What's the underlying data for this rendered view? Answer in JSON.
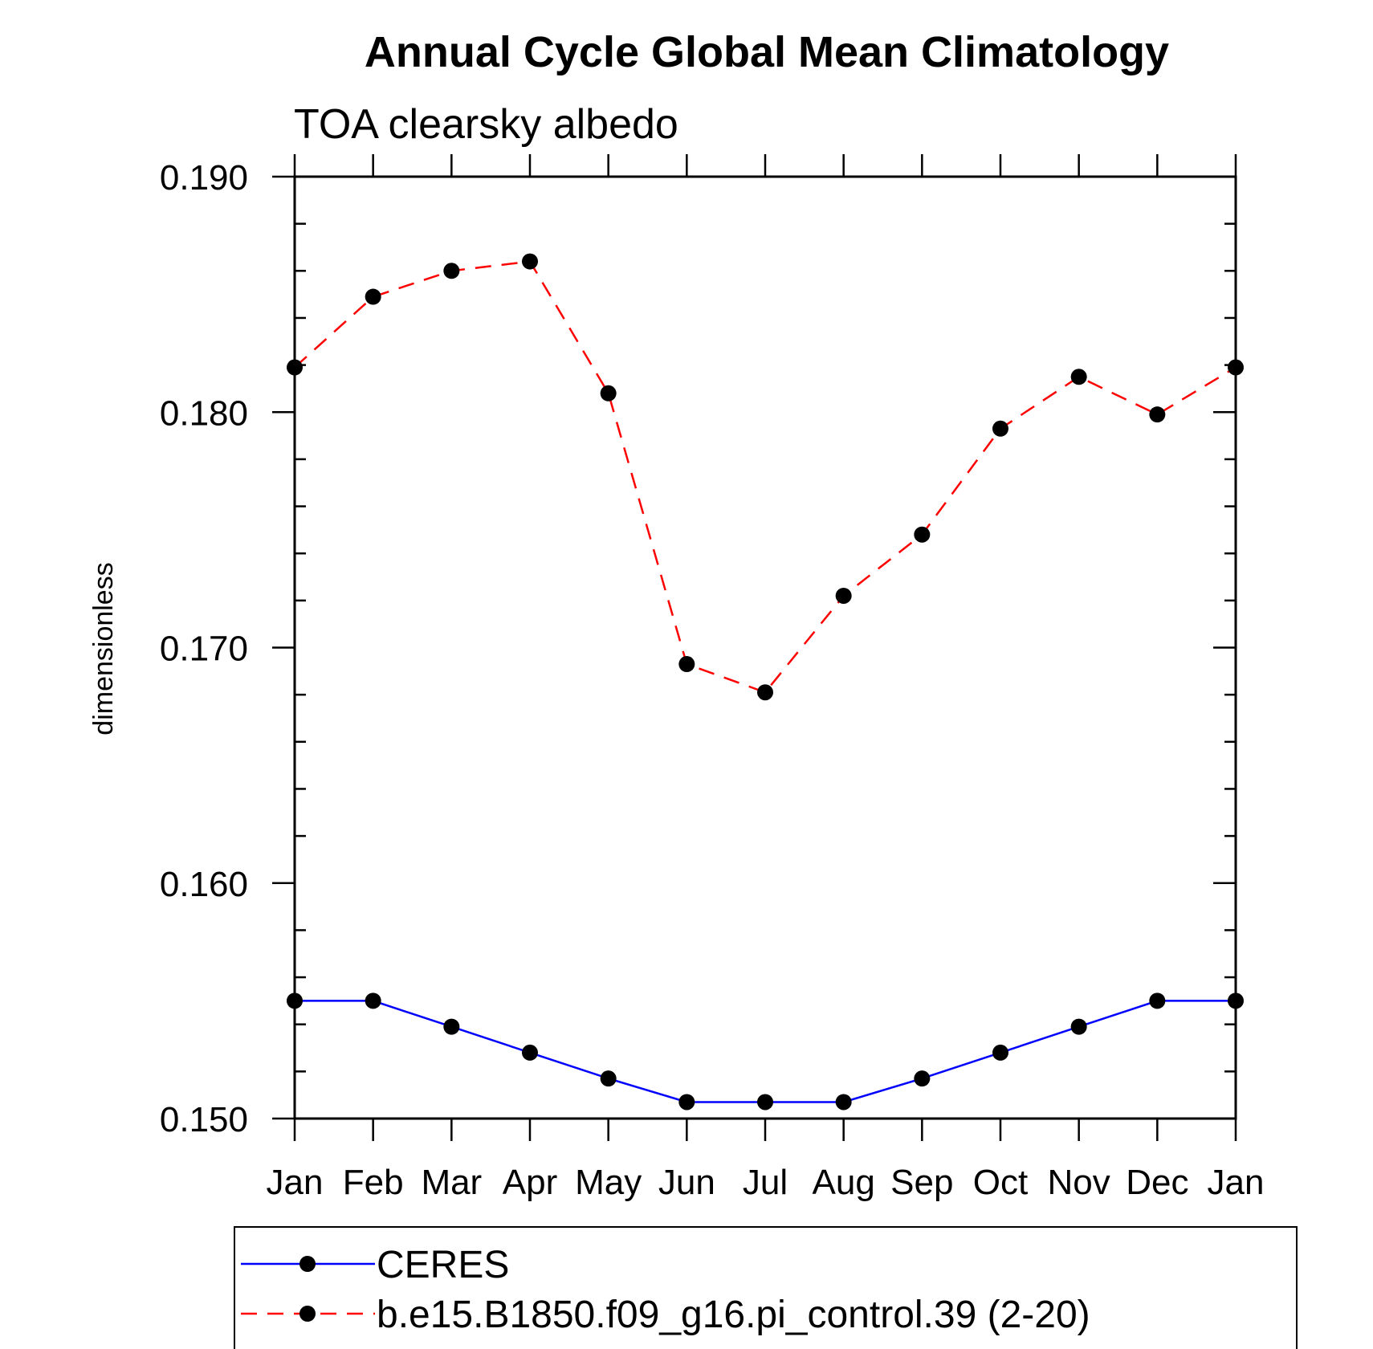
{
  "chart_data": {
    "type": "line",
    "title": "Annual Cycle Global Mean Climatology",
    "subtitle": "TOA clearsky albedo",
    "xlabel": "",
    "ylabel": "dimensionless",
    "categories": [
      "Jan",
      "Feb",
      "Mar",
      "Apr",
      "May",
      "Jun",
      "Jul",
      "Aug",
      "Sep",
      "Oct",
      "Nov",
      "Dec",
      "Jan"
    ],
    "ylim": [
      0.15,
      0.19
    ],
    "yticks": [
      "0.150",
      "0.160",
      "0.170",
      "0.180",
      "0.190"
    ],
    "ytick_values": [
      0.15,
      0.16,
      0.17,
      0.18,
      0.19
    ],
    "grid": false,
    "legend_position": "bottom",
    "series": [
      {
        "name": "CERES",
        "color": "#0000ff",
        "style": "solid",
        "marker": "filled-circle",
        "values": [
          0.155,
          0.155,
          0.1539,
          0.1528,
          0.1517,
          0.1507,
          0.1507,
          0.1507,
          0.1517,
          0.1528,
          0.1539,
          0.155,
          0.155
        ]
      },
      {
        "name": "b.e15.B1850.f09_g16.pi_control.39 (2-20)",
        "color": "#ff0000",
        "style": "dashed",
        "marker": "filled-circle",
        "values": [
          0.1819,
          0.1849,
          0.186,
          0.1864,
          0.1808,
          0.1693,
          0.1681,
          0.1722,
          0.1748,
          0.1793,
          0.1815,
          0.1799,
          0.1819
        ]
      }
    ]
  }
}
